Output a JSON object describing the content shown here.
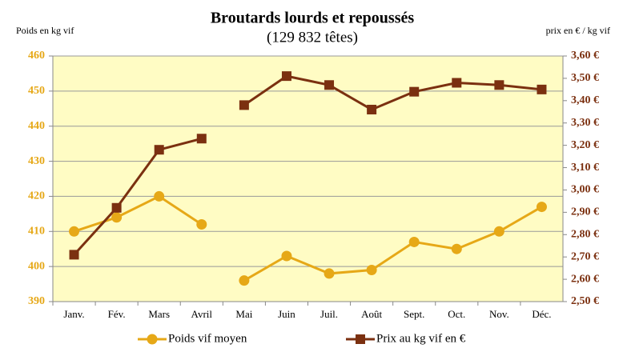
{
  "chart_data": {
    "type": "line",
    "title": "Broutards lourds et repoussés",
    "subtitle": "(129 832 têtes)",
    "y_label": "Poids en kg vif",
    "y2_label": "prix en € / kg vif",
    "categories": [
      "Janv.",
      "Fév.",
      "Mars",
      "Avril",
      "Mai",
      "Juin",
      "Juil.",
      "Août",
      "Sept.",
      "Oct.",
      "Nov.",
      "Déc."
    ],
    "break_after": 3,
    "series": [
      {
        "name": "Poids vif moyen",
        "color": "#e6a817",
        "marker": "circle",
        "values": [
          410,
          414,
          420,
          412,
          396,
          403,
          398,
          399,
          407,
          405,
          410,
          417
        ]
      },
      {
        "name": "Prix au kg vif en €",
        "color": "#7b3010",
        "marker": "square",
        "axis": "y2",
        "values": [
          2.71,
          2.92,
          3.18,
          3.23,
          3.38,
          3.51,
          3.47,
          3.36,
          3.44,
          3.48,
          3.47,
          3.45
        ]
      }
    ],
    "ylim": [
      390,
      460
    ],
    "yticks": [
      390,
      400,
      410,
      420,
      430,
      440,
      450,
      460
    ],
    "y2lim": [
      2.5,
      3.6
    ],
    "y2ticks": [
      {
        "value": 2.5,
        "label": "2,50 €"
      },
      {
        "value": 2.6,
        "label": "2,60 €"
      },
      {
        "value": 2.7,
        "label": "2,70 €"
      },
      {
        "value": 2.8,
        "label": "2,80 €"
      },
      {
        "value": 2.9,
        "label": "2,90 €"
      },
      {
        "value": 3.0,
        "label": "3,00 €"
      },
      {
        "value": 3.1,
        "label": "3,10 €"
      },
      {
        "value": 3.2,
        "label": "3,20 €"
      },
      {
        "value": 3.3,
        "label": "3,30 €"
      },
      {
        "value": 3.4,
        "label": "3,40 €"
      },
      {
        "value": 3.5,
        "label": "3,50 €"
      },
      {
        "value": 3.6,
        "label": "3,60 €"
      }
    ],
    "grid": true,
    "legend": "bottom",
    "plot_background": "#fffcc4"
  }
}
